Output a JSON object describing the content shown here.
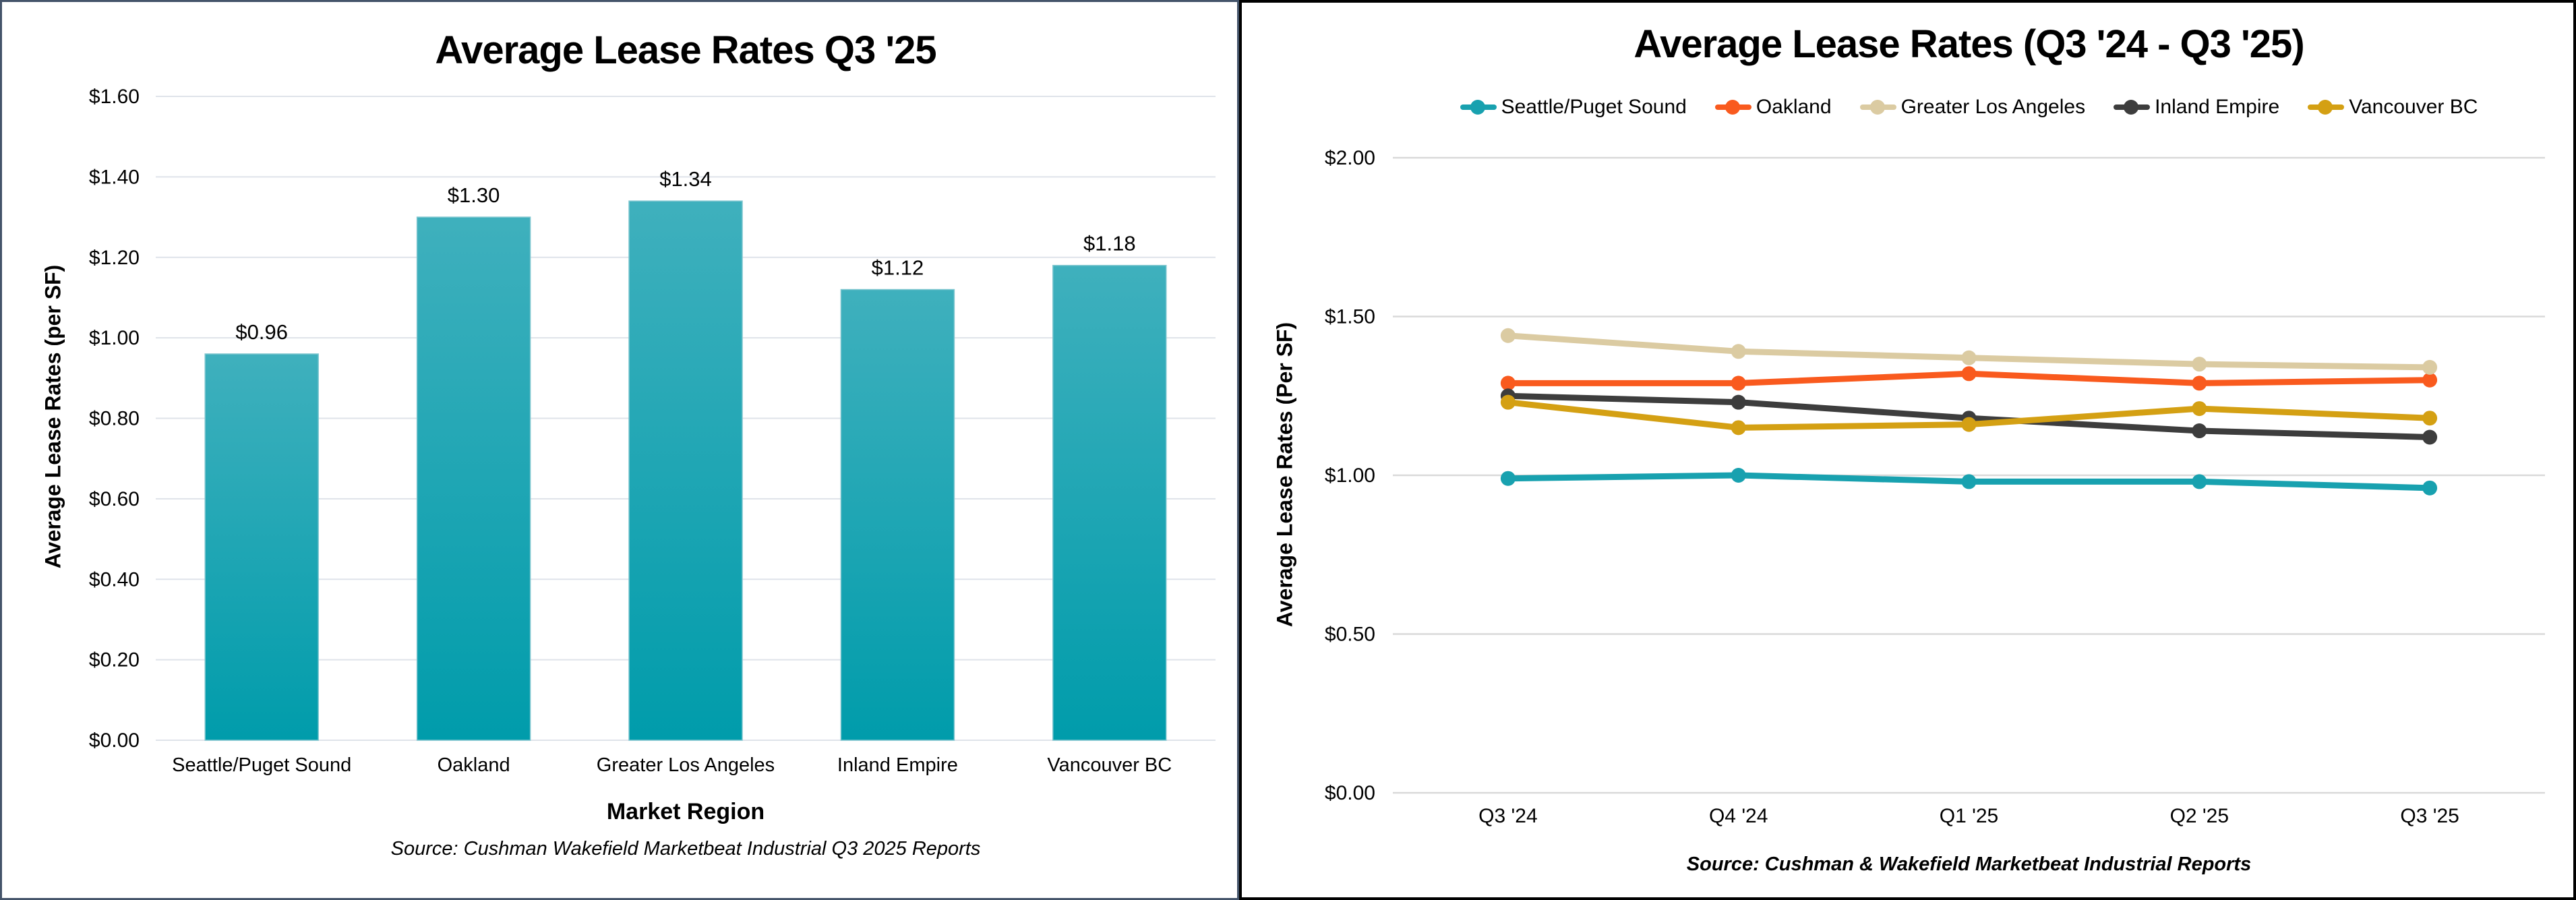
{
  "colors": {
    "left_panel_border": "#44546A",
    "right_panel_border": "#000000",
    "grid_left": "#DFE3EA",
    "grid_right": "#D9D9D9",
    "bar_gradient_top": "#3FB0BD",
    "bar_gradient_bottom": "#009CAB",
    "bar_edge": "#7EC6CF",
    "text": "#000000"
  },
  "chart_data": [
    {
      "type": "bar",
      "title": "Average Lease Rates Q3 '25",
      "categories": [
        "Seattle/Puget Sound",
        "Oakland",
        "Greater Los Angeles",
        "Inland Empire",
        "Vancouver BC"
      ],
      "values": [
        0.96,
        1.3,
        1.34,
        1.12,
        1.18
      ],
      "value_labels": [
        "$0.96",
        "$1.30",
        "$1.34",
        "$1.12",
        "$1.18"
      ],
      "xlabel": "Market Region",
      "ylabel": "Average Lease Rates (per SF)",
      "ylim": [
        0,
        1.6
      ],
      "ytick_step": 0.2,
      "ytick_labels": [
        "$0.00",
        "$0.20",
        "$0.40",
        "$0.60",
        "$0.80",
        "$1.00",
        "$1.20",
        "$1.40",
        "$1.60"
      ],
      "grid": true,
      "source": "Source: Cushman Wakefield Marketbeat Industrial Q3 2025 Reports"
    },
    {
      "type": "line",
      "title": "Average Lease Rates (Q3 '24 - Q3 '25)",
      "x": [
        "Q3 '24",
        "Q4 '24",
        "Q1 '25",
        "Q2 '25",
        "Q3 '25"
      ],
      "series": [
        {
          "name": "Seattle/Puget Sound",
          "color": "#18A1AF",
          "values": [
            0.99,
            1.0,
            0.98,
            0.98,
            0.96
          ]
        },
        {
          "name": "Oakland",
          "color": "#F95A1E",
          "values": [
            1.29,
            1.29,
            1.32,
            1.29,
            1.3
          ]
        },
        {
          "name": "Greater Los Angeles",
          "color": "#DBCBA2",
          "values": [
            1.44,
            1.39,
            1.37,
            1.35,
            1.34
          ]
        },
        {
          "name": "Inland Empire",
          "color": "#3D3D3D",
          "values": [
            1.25,
            1.23,
            1.18,
            1.14,
            1.12
          ]
        },
        {
          "name": "Vancouver BC",
          "color": "#D4A013",
          "values": [
            1.23,
            1.15,
            1.16,
            1.21,
            1.18
          ]
        }
      ],
      "ylabel": "Average Lease Rates (Per SF)",
      "ylim": [
        0,
        2.0
      ],
      "ytick_step": 0.5,
      "ytick_labels": [
        "$0.00",
        "$0.50",
        "$1.00",
        "$1.50",
        "$2.00"
      ],
      "legend_position": "top",
      "grid": true,
      "source": "Source: Cushman & Wakefield Marketbeat Industrial Reports"
    }
  ]
}
